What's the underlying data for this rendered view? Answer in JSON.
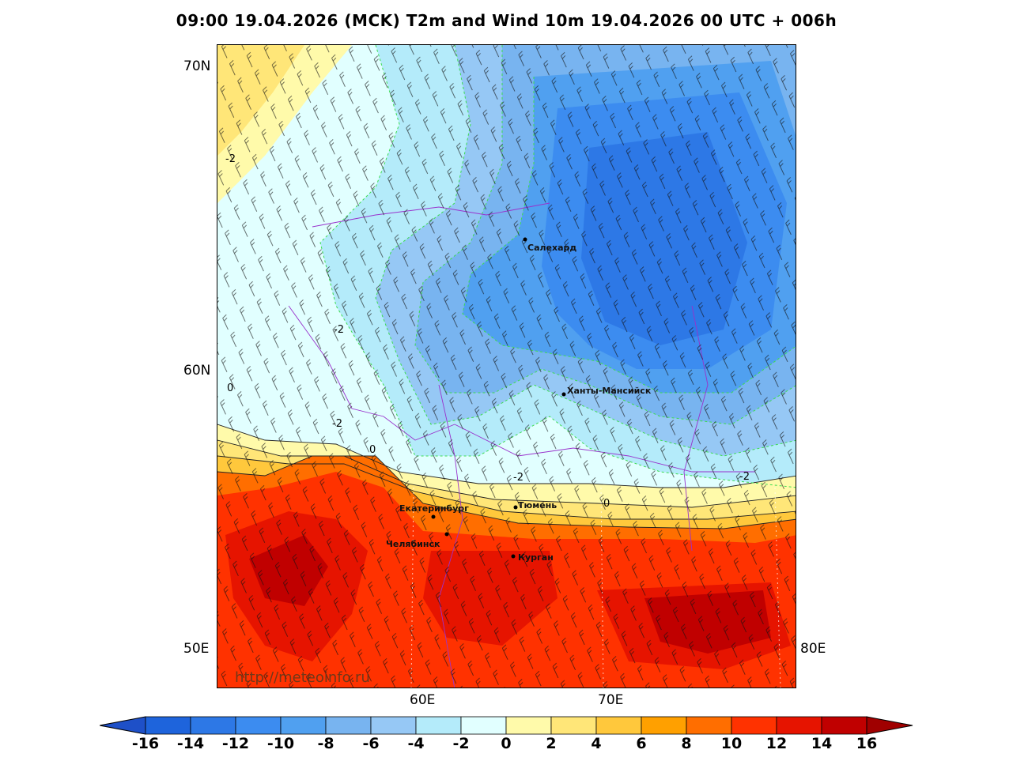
{
  "title": "09:00 19.04.2026 (MCK) T2m and Wind 10m 19.04.2026 00 UTC + 006h",
  "axes": {
    "lat_labels": [
      "70N",
      "60N",
      "50E"
    ],
    "lon_labels": [
      "60E",
      "70E"
    ],
    "right_label": "80E"
  },
  "cities": [
    {
      "name": "Салехард"
    },
    {
      "name": "Ханты-Мансийск"
    },
    {
      "name": "Екатеринбург"
    },
    {
      "name": "Тюмень"
    },
    {
      "name": "Челябинск"
    },
    {
      "name": "Курган"
    }
  ],
  "contour_labels": [
    "-2",
    "-2",
    "0",
    "-2",
    "0",
    "-2",
    "0",
    "-2"
  ],
  "watermark": "http://meteoinfo.ru",
  "colorbar": {
    "ticks": [
      "-16",
      "-14",
      "-12",
      "-10",
      "-8",
      "-6",
      "-4",
      "-2",
      "0",
      "2",
      "4",
      "6",
      "8",
      "10",
      "12",
      "14",
      "16"
    ],
    "colors": [
      "#1e64dc",
      "#2d78e6",
      "#3c8cf0",
      "#50a0f0",
      "#78b4f0",
      "#96c8f5",
      "#b4ebfa",
      "#e1ffff",
      "#fffaaa",
      "#ffe678",
      "#ffc83c",
      "#ffa000",
      "#ff6e00",
      "#ff3200",
      "#e61400",
      "#c00000"
    ],
    "low_color": "#1e50c8",
    "high_color": "#a00000"
  }
}
